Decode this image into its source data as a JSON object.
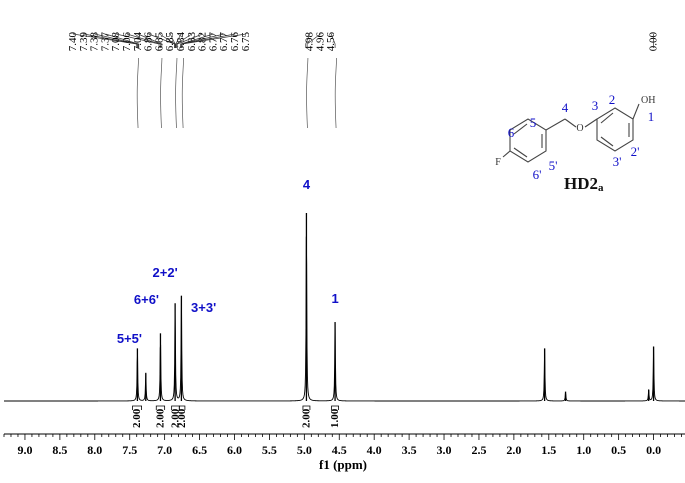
{
  "chart_data": {
    "type": "line",
    "xlabel": "f1 (ppm)",
    "xlim": [
      9.3,
      -0.45
    ],
    "x_reversed": true,
    "ticks": [
      "9.0",
      "8.5",
      "8.0",
      "7.5",
      "7.0",
      "6.5",
      "6.0",
      "5.5",
      "5.0",
      "4.5",
      "4.0",
      "3.5",
      "3.0",
      "2.5",
      "2.0",
      "1.5",
      "1.0",
      "0.5",
      "0.0"
    ],
    "shift_labels": [
      "7.40",
      "7.39",
      "7.38",
      "7.37",
      "7.08",
      "7.06",
      "7.04",
      "6.86",
      "6.85",
      "6.85",
      "6.84",
      "6.83",
      "6.82",
      "6.77",
      "6.77",
      "6.76",
      "6.75",
      "4.98",
      "4.96",
      "4.56",
      "0.00"
    ],
    "integrals": [
      {
        "from": 7.46,
        "to": 7.33,
        "value": "2.00"
      },
      {
        "from": 7.12,
        "to": 7.0,
        "value": "2.00"
      },
      {
        "from": 6.9,
        "to": 6.79,
        "value": "2.00"
      },
      {
        "from": 6.79,
        "to": 6.71,
        "value": "2.00"
      },
      {
        "from": 5.02,
        "to": 4.92,
        "value": "2.00"
      },
      {
        "from": 4.61,
        "to": 4.51,
        "value": "1.00"
      }
    ],
    "peaks": [
      {
        "x": 7.39,
        "height": 0.28
      },
      {
        "x": 7.27,
        "height": 0.15
      },
      {
        "x": 7.06,
        "height": 0.36
      },
      {
        "x": 6.85,
        "height": 0.52
      },
      {
        "x": 6.76,
        "height": 0.56
      },
      {
        "x": 4.97,
        "height": 1.0
      },
      {
        "x": 4.56,
        "height": 0.42
      },
      {
        "x": 1.56,
        "height": 0.28
      },
      {
        "x": 1.26,
        "height": 0.05
      },
      {
        "x": 0.07,
        "height": 0.06
      },
      {
        "x": 0.0,
        "height": 0.29
      }
    ],
    "annotations": [
      {
        "label": "5+5'",
        "x": 7.39
      },
      {
        "label": "6+6'",
        "x": 7.06
      },
      {
        "label": "2+2'",
        "x": 6.85
      },
      {
        "label": "3+3'",
        "x": 6.7
      },
      {
        "label": "4",
        "x": 4.97
      },
      {
        "label": "1",
        "x": 4.56
      }
    ],
    "annotation_color": "#1010c8",
    "line_color": "#000000"
  },
  "structure": {
    "compound": "HD2a",
    "compound_main": "HD2",
    "compound_sub": "a",
    "atoms": {
      "F": "F",
      "O": "O",
      "OH": "OH"
    },
    "numbers": [
      "1",
      "2",
      "2'",
      "3",
      "3'",
      "4",
      "5",
      "5'",
      "6",
      "6'"
    ]
  }
}
